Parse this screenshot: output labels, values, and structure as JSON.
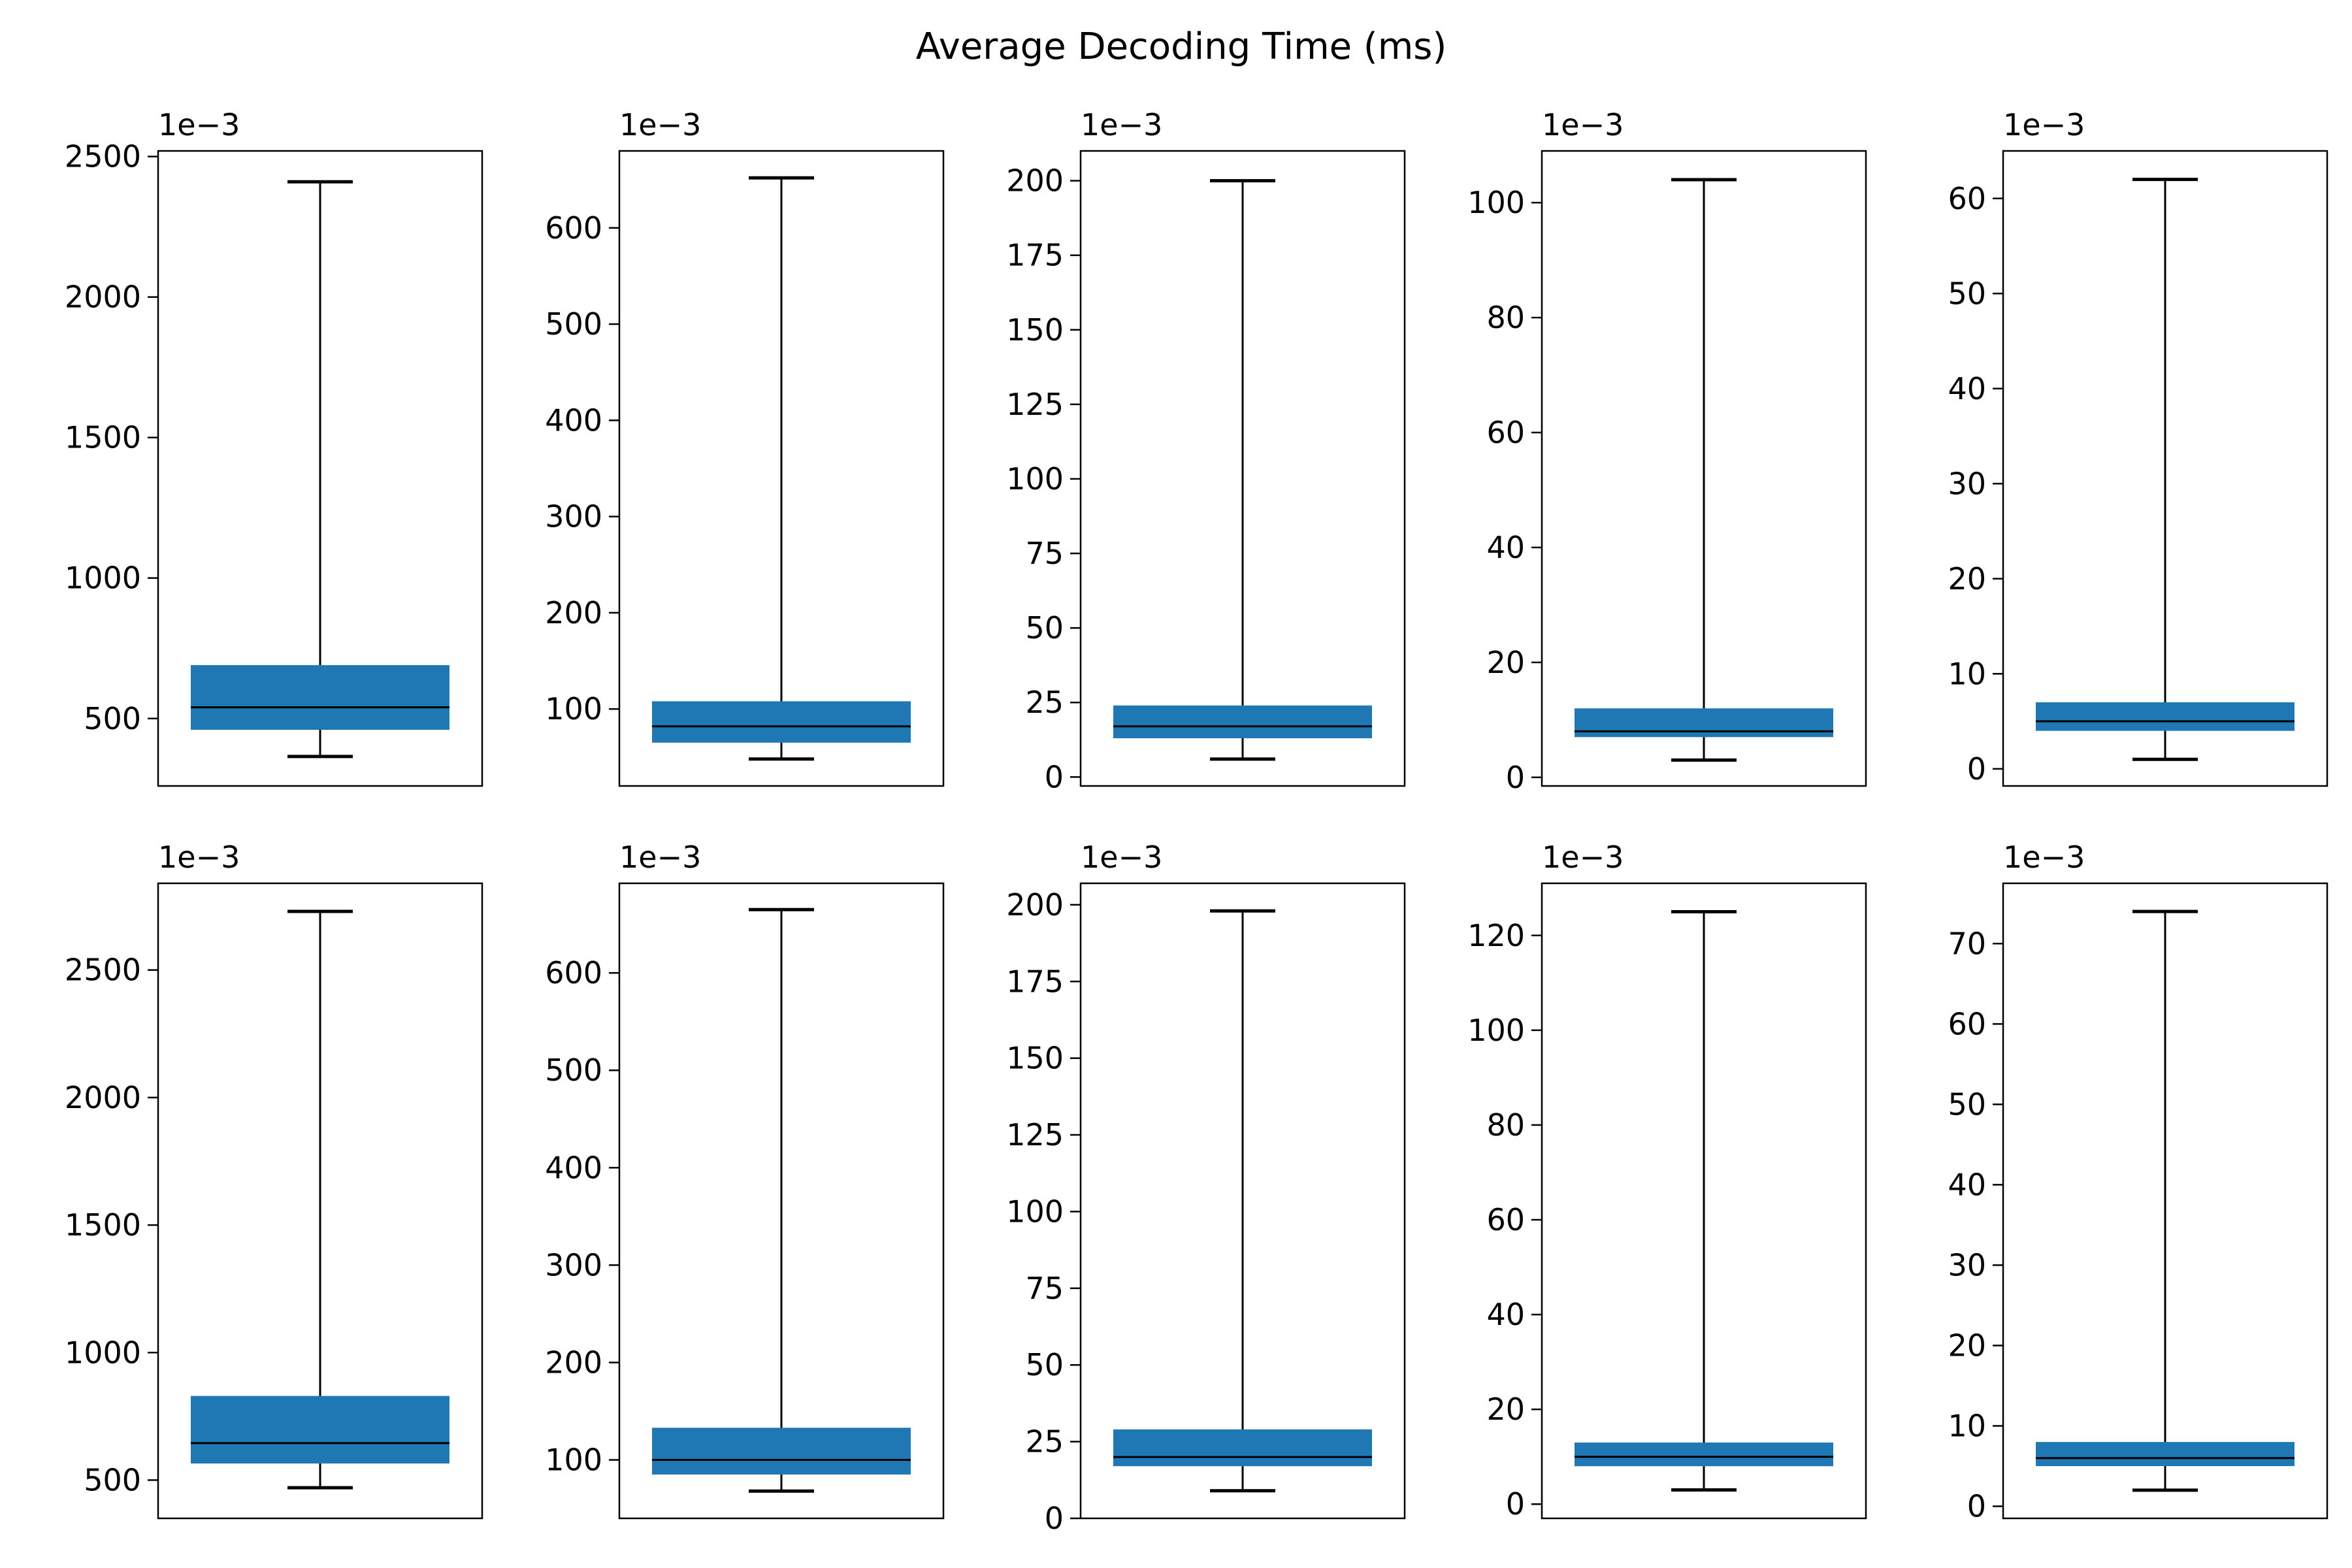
{
  "figure": {
    "title": "Average Decoding Time (ms)",
    "box_color": "#1f77b4",
    "line_color": "#000000"
  },
  "chart_data": [
    {
      "type": "box",
      "row": 0,
      "col": 0,
      "offset_text": "1e−3",
      "ylim": [
        260,
        2520
      ],
      "yticks": [
        500,
        1000,
        1500,
        2000,
        2500
      ],
      "box": {
        "whisker_low": 365,
        "q1": 460,
        "median": 540,
        "q3": 690,
        "whisker_high": 2410
      }
    },
    {
      "type": "box",
      "row": 0,
      "col": 1,
      "offset_text": "1e−3",
      "ylim": [
        20,
        680
      ],
      "yticks": [
        100,
        200,
        300,
        400,
        500,
        600
      ],
      "box": {
        "whisker_low": 48,
        "q1": 65,
        "median": 82,
        "q3": 108,
        "whisker_high": 652
      }
    },
    {
      "type": "box",
      "row": 0,
      "col": 2,
      "offset_text": "1e−3",
      "ylim": [
        -3,
        210
      ],
      "yticks": [
        0,
        25,
        50,
        75,
        100,
        125,
        150,
        175,
        200
      ],
      "box": {
        "whisker_low": 6,
        "q1": 13,
        "median": 17,
        "q3": 24,
        "whisker_high": 200
      }
    },
    {
      "type": "box",
      "row": 0,
      "col": 3,
      "offset_text": "1e−3",
      "ylim": [
        -1.5,
        109
      ],
      "yticks": [
        0,
        20,
        40,
        60,
        80,
        100
      ],
      "box": {
        "whisker_low": 3,
        "q1": 7,
        "median": 8,
        "q3": 12,
        "whisker_high": 104
      }
    },
    {
      "type": "box",
      "row": 0,
      "col": 4,
      "offset_text": "1e−3",
      "ylim": [
        -1.8,
        65
      ],
      "yticks": [
        0,
        10,
        20,
        30,
        40,
        50,
        60
      ],
      "box": {
        "whisker_low": 1,
        "q1": 4,
        "median": 5,
        "q3": 7,
        "whisker_high": 62
      }
    },
    {
      "type": "box",
      "row": 1,
      "col": 0,
      "offset_text": "1e−3",
      "ylim": [
        350,
        2840
      ],
      "yticks": [
        500,
        1000,
        1500,
        2000,
        2500
      ],
      "box": {
        "whisker_low": 470,
        "q1": 565,
        "median": 645,
        "q3": 830,
        "whisker_high": 2730
      }
    },
    {
      "type": "box",
      "row": 1,
      "col": 1,
      "offset_text": "1e−3",
      "ylim": [
        40,
        692
      ],
      "yticks": [
        100,
        200,
        300,
        400,
        500,
        600
      ],
      "box": {
        "whisker_low": 68,
        "q1": 85,
        "median": 100,
        "q3": 133,
        "whisker_high": 665
      }
    },
    {
      "type": "box",
      "row": 1,
      "col": 2,
      "offset_text": "1e−3",
      "ylim": [
        0,
        207
      ],
      "yticks": [
        0,
        25,
        50,
        75,
        100,
        125,
        150,
        175,
        200
      ],
      "box": {
        "whisker_low": 9,
        "q1": 17,
        "median": 20,
        "q3": 29,
        "whisker_high": 198
      }
    },
    {
      "type": "box",
      "row": 1,
      "col": 3,
      "offset_text": "1e−3",
      "ylim": [
        -3,
        131
      ],
      "yticks": [
        0,
        20,
        40,
        60,
        80,
        100,
        120
      ],
      "box": {
        "whisker_low": 3,
        "q1": 8,
        "median": 10,
        "q3": 13,
        "whisker_high": 125
      }
    },
    {
      "type": "box",
      "row": 1,
      "col": 4,
      "offset_text": "1e−3",
      "ylim": [
        -1.5,
        77.5
      ],
      "yticks": [
        0,
        10,
        20,
        30,
        40,
        50,
        60,
        70
      ],
      "box": {
        "whisker_low": 2,
        "q1": 5,
        "median": 6,
        "q3": 8,
        "whisker_high": 74
      }
    }
  ]
}
